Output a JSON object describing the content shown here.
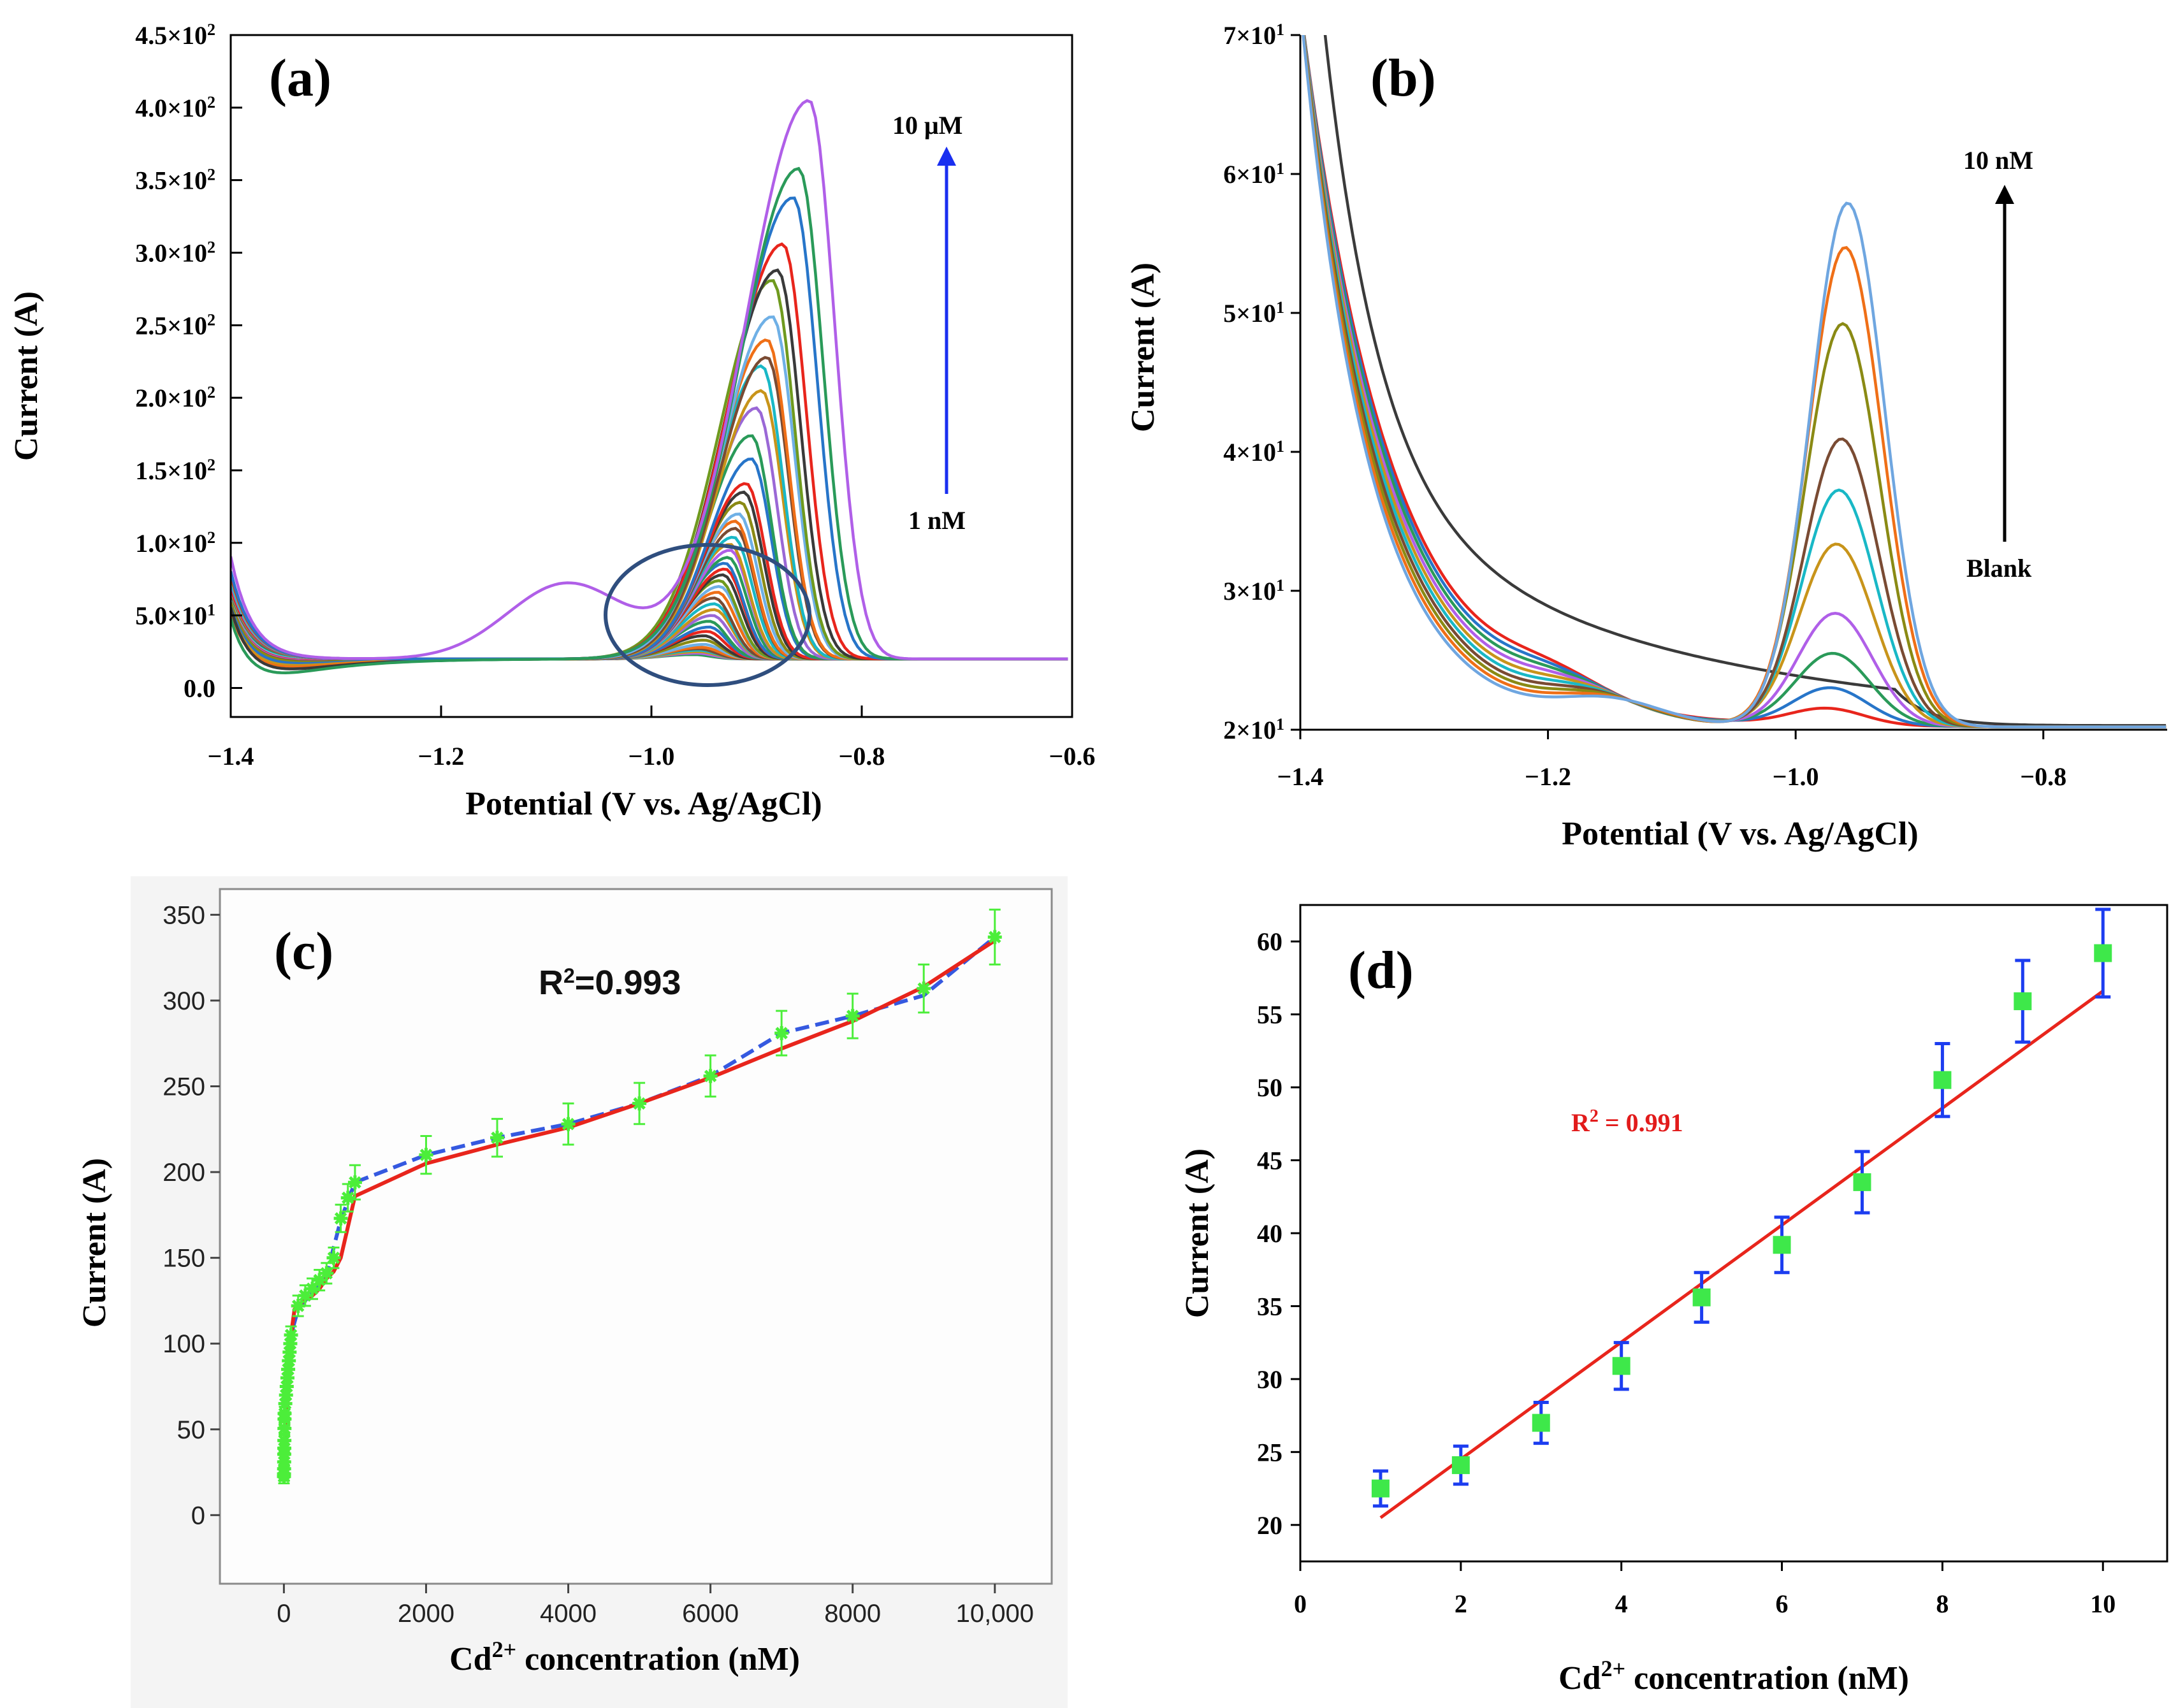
{
  "chart_data": [
    {
      "panel": "(a)",
      "type": "line",
      "xlabel": "Potential (V vs. Ag/AgCl)",
      "ylabel": "Current  (A)",
      "xlim": [
        -1.4,
        -0.6
      ],
      "ylim": [
        -20,
        450
      ],
      "xticks": [
        {
          "value": -1.4,
          "label": "−1.4"
        },
        {
          "value": -1.2,
          "label": "−1.2"
        },
        {
          "value": -1.0,
          "label": "−1.0"
        },
        {
          "value": -0.8,
          "label": "−0.8"
        },
        {
          "value": -0.6,
          "label": "−0.6"
        }
      ],
      "yticks": [
        {
          "value": 0,
          "mant": "0.0",
          "exp": ""
        },
        {
          "value": 50,
          "mant": "5.0×10",
          "exp": "1"
        },
        {
          "value": 100,
          "mant": "1.0×10",
          "exp": "2"
        },
        {
          "value": 150,
          "mant": "1.5×10",
          "exp": "2"
        },
        {
          "value": 200,
          "mant": "2.0×10",
          "exp": "2"
        },
        {
          "value": 250,
          "mant": "2.5×10",
          "exp": "2"
        },
        {
          "value": 300,
          "mant": "3.0×10",
          "exp": "2"
        },
        {
          "value": 350,
          "mant": "3.5×10",
          "exp": "2"
        },
        {
          "value": 400,
          "mant": "4.0×10",
          "exp": "2"
        },
        {
          "value": 450,
          "mant": "4.5×10",
          "exp": "2"
        }
      ],
      "annotations": {
        "top": "10 μM",
        "bottom": "1 nM"
      },
      "series_peak_currents": [
        405,
        358,
        338,
        306,
        288,
        281,
        256,
        240,
        228,
        222,
        205,
        193,
        174,
        158,
        141,
        135,
        128,
        120,
        115,
        110,
        104,
        99,
        95,
        90,
        86,
        82,
        78,
        74,
        70,
        66,
        62,
        58,
        54,
        50,
        46,
        42,
        39,
        36,
        33,
        30,
        28,
        27,
        26,
        25,
        24,
        23
      ],
      "peak_potentials": [
        -0.85,
        -0.86,
        -0.865,
        -0.875,
        -0.88,
        -0.885,
        -0.885,
        -0.89,
        -0.89,
        -0.895,
        -0.895,
        -0.9,
        -0.905,
        -0.905,
        -0.91,
        -0.912,
        -0.915,
        -0.917,
        -0.92,
        -0.92,
        -0.922,
        -0.925,
        -0.925,
        -0.927,
        -0.93,
        -0.93,
        -0.932,
        -0.935,
        -0.935,
        -0.937,
        -0.94,
        -0.94,
        -0.94,
        -0.942,
        -0.945,
        -0.945,
        -0.947,
        -0.95,
        -0.95,
        -0.95,
        -0.952,
        -0.955,
        -0.955,
        -0.955,
        -0.957,
        -0.96
      ],
      "colors": [
        "#b05fe8",
        "#2a9a59",
        "#2775c9",
        "#e8251c",
        "#3a3a3a",
        "#6f9a1e",
        "#6fb0e6",
        "#ef6f17",
        "#7a4b33",
        "#19b8c6",
        "#c8941a",
        "#9a68d6",
        "#2a9a59",
        "#2775c9",
        "#e8251c",
        "#3a3a3a",
        "#8a8a14",
        "#6fb0e6",
        "#ef6f17",
        "#7a4b33",
        "#19b8c6",
        "#c8941a",
        "#b05fe8",
        "#2a9a59",
        "#2775c9",
        "#e8251c",
        "#3a3a3a",
        "#6f9a1e",
        "#6fb0e6",
        "#ef6f17",
        "#7a4b33",
        "#19b8c6",
        "#c8941a",
        "#9a68d6",
        "#2a9a59",
        "#2775c9",
        "#e8251c",
        "#3a3a3a",
        "#8a8a14",
        "#6fb0e6",
        "#ef6f17",
        "#7a4b33",
        "#19b8c6",
        "#c8941a",
        "#b05fe8",
        "#2a9a59"
      ]
    },
    {
      "panel": "(b)",
      "type": "line",
      "xlabel": "Potential (V vs. Ag/AgCl)",
      "ylabel": "Current  (A)",
      "xlim": [
        -1.4,
        -0.7
      ],
      "ylim": [
        20,
        70
      ],
      "xticks": [
        {
          "value": -1.4,
          "label": "−1.4"
        },
        {
          "value": -1.2,
          "label": "−1.2"
        },
        {
          "value": -1.0,
          "label": "−1.0"
        },
        {
          "value": -0.8,
          "label": "−0.8"
        }
      ],
      "yticks": [
        {
          "value": 20,
          "mant": "2×10",
          "exp": "1"
        },
        {
          "value": 30,
          "mant": "3×10",
          "exp": "1"
        },
        {
          "value": 40,
          "mant": "4×10",
          "exp": "1"
        },
        {
          "value": 50,
          "mant": "5×10",
          "exp": "1"
        },
        {
          "value": 60,
          "mant": "6×10",
          "exp": "1"
        },
        {
          "value": 70,
          "mant": "7×10",
          "exp": "1"
        }
      ],
      "annotations": {
        "top": "10 nM",
        "bottom": "Blank"
      },
      "series_peak_currents": [
        59.2,
        56.0,
        50.5,
        42.2,
        38.5,
        34.6,
        29.6,
        26.7,
        24.2,
        22.7
      ],
      "peak_potentials": [
        -0.958,
        -0.96,
        -0.962,
        -0.963,
        -0.965,
        -0.967,
        -0.968,
        -0.97,
        -0.972,
        -0.975
      ],
      "colors": [
        "#6fa6e0",
        "#ef6f17",
        "#8a8a14",
        "#7a4b33",
        "#19b8c6",
        "#c8941a",
        "#b05fe8",
        "#2a9a59",
        "#2775c9",
        "#e8251c"
      ],
      "blank_color": "#3a3a3a"
    },
    {
      "panel": "(c)",
      "type": "scatter",
      "xlabel": "Cd2+ concentration (nM)",
      "ylabel": "Current (A)",
      "annotation": "R2=0.993",
      "xlim": [
        -900,
        10800
      ],
      "ylim": [
        -40,
        365
      ],
      "xticks": [
        {
          "value": 0,
          "label": "0"
        },
        {
          "value": 2000,
          "label": "2000"
        },
        {
          "value": 4000,
          "label": "4000"
        },
        {
          "value": 6000,
          "label": "6000"
        },
        {
          "value": 8000,
          "label": "8000"
        },
        {
          "value": 10000,
          "label": "10,000"
        }
      ],
      "yticks": [
        0,
        50,
        100,
        150,
        200,
        250,
        300,
        350
      ],
      "x": [
        1,
        2,
        3,
        4,
        5,
        6,
        7,
        8,
        9,
        10,
        20,
        30,
        40,
        50,
        60,
        70,
        80,
        90,
        100,
        200,
        300,
        400,
        500,
        600,
        700,
        800,
        900,
        1000,
        2000,
        3000,
        4000,
        5000,
        6000,
        7000,
        8000,
        9000,
        10000
      ],
      "values": [
        22.5,
        24,
        27,
        31,
        35.5,
        39,
        43.5,
        50.5,
        56,
        59.2,
        65,
        70,
        75,
        80,
        85,
        90,
        95,
        100,
        105,
        122,
        128,
        132,
        137,
        141,
        150,
        173,
        185,
        194,
        210,
        220,
        228,
        240,
        256,
        281,
        291,
        307,
        337
      ],
      "errors": [
        4,
        4,
        4,
        4,
        4,
        4,
        4,
        4,
        4,
        4,
        5,
        5,
        5,
        5,
        5,
        5,
        5,
        5,
        5,
        6,
        6,
        6,
        6,
        6,
        6,
        8,
        8,
        10,
        11,
        11,
        12,
        12,
        12,
        13,
        13,
        14,
        16
      ],
      "fit_x": [
        1,
        100,
        150,
        300,
        400,
        500,
        600,
        700,
        800,
        900,
        1000,
        2000,
        3000,
        4000,
        5000,
        6000,
        7000,
        8000,
        9000,
        10000
      ],
      "fit_y": [
        25,
        105,
        120,
        126,
        128,
        132,
        138,
        142,
        150,
        168,
        186,
        205,
        216,
        226,
        240,
        255,
        272,
        288,
        308,
        335
      ],
      "blue_x": [
        1,
        100,
        200,
        400,
        600,
        800,
        1000,
        2000,
        3000,
        4000,
        5000,
        6000,
        7000,
        8000,
        9000,
        10000
      ],
      "blue_y": [
        25,
        105,
        120,
        130,
        140,
        172,
        194,
        210,
        220,
        228,
        240,
        256,
        281,
        291,
        303,
        337
      ],
      "marker_color": "#4cee3a",
      "fit_color": "#e8251c",
      "blue_color": "#3559e0"
    },
    {
      "panel": "(d)",
      "type": "scatter",
      "xlabel": "Cd2+ concentration (nM)",
      "ylabel": "Current (A)",
      "annotation": "R2 = 0.991",
      "xlim": [
        0,
        10.8
      ],
      "ylim": [
        17.5,
        62.5
      ],
      "xticks": [
        0,
        2,
        4,
        6,
        8,
        10
      ],
      "yticks": [
        20,
        25,
        30,
        35,
        40,
        45,
        50,
        55,
        60
      ],
      "x": [
        1,
        2,
        3,
        4,
        5,
        6,
        7,
        8,
        9,
        10
      ],
      "values": [
        22.5,
        24.1,
        27.0,
        30.9,
        35.6,
        39.2,
        43.5,
        50.5,
        55.9,
        59.2
      ],
      "errors": [
        1.2,
        1.3,
        1.4,
        1.6,
        1.7,
        1.9,
        2.1,
        2.5,
        2.8,
        3.0
      ],
      "fit": {
        "x": [
          1,
          10
        ],
        "y": [
          20.5,
          56.6
        ]
      },
      "marker_color": "#3ee84a",
      "error_color": "#1c3df0",
      "fit_color": "#e8251c"
    }
  ],
  "labels": {
    "panel_a": "(a)",
    "panel_b": "(b)",
    "panel_c": "(c)",
    "panel_d": "(d)",
    "a_xlabel": "Potential (V vs. Ag/AgCl)",
    "a_ylabel": "Current  (A)",
    "a_top": "10 μM",
    "a_bottom": "1 nM",
    "b_xlabel": "Potential (V vs. Ag/AgCl)",
    "b_ylabel": "Current  (A)",
    "b_top": "10 nM",
    "b_bottom": "Blank",
    "c_ylabel": "Current (A)",
    "c_x_pre": "Cd",
    "c_x_sup": "2+",
    "c_x_post": " concentration (nM)",
    "c_r2_pre": "R",
    "c_r2_sup": "2",
    "c_r2_post": "=0.993",
    "d_ylabel": "Current (A)",
    "d_x_pre": "Cd",
    "d_x_sup": "2+",
    "d_x_post": " concentration (nM)",
    "d_r2_pre": "R",
    "d_r2_sup": "2",
    "d_r2_post": " = 0.991"
  }
}
